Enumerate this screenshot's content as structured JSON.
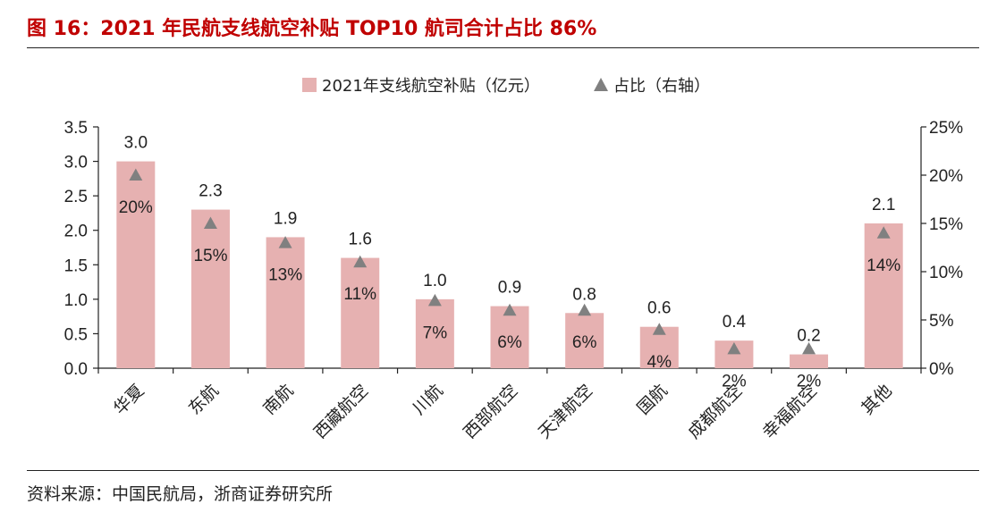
{
  "figure": {
    "title": "图 16：2021 年民航支线航空补贴 TOP10 航司合计占比 86%",
    "source": "资料来源：中国民航局，浙商证券研究所"
  },
  "colors": {
    "bar": "#e6b1b1",
    "marker": "#808080",
    "title": "#c00000",
    "axis": "#222222"
  },
  "chart_data": {
    "type": "bar",
    "categories": [
      "华夏",
      "东航",
      "南航",
      "西藏航空",
      "川航",
      "西部航空",
      "天津航空",
      "国航",
      "成都航空",
      "幸福航空",
      "其他"
    ],
    "series": [
      {
        "name": "2021年支线航空补贴（亿元）",
        "type": "bar",
        "axis": "left",
        "values": [
          3.0,
          2.3,
          1.9,
          1.6,
          1.0,
          0.9,
          0.8,
          0.6,
          0.4,
          0.2,
          2.1
        ],
        "labels": [
          "3.0",
          "2.3",
          "1.9",
          "1.6",
          "1.0",
          "0.9",
          "0.8",
          "0.6",
          "0.4",
          "0.2",
          "2.1"
        ]
      },
      {
        "name": "占比（右轴）",
        "type": "scatter",
        "marker": "triangle",
        "axis": "right",
        "values": [
          20,
          15,
          13,
          11,
          7,
          6,
          6,
          4,
          2,
          2,
          14
        ],
        "labels": [
          "20%",
          "15%",
          "13%",
          "11%",
          "7%",
          "6%",
          "6%",
          "4%",
          "2%",
          "2%",
          "14%"
        ]
      }
    ],
    "ylim": [
      0,
      3.5
    ],
    "yticks": [
      "0.0",
      "0.5",
      "1.0",
      "1.5",
      "2.0",
      "2.5",
      "3.0",
      "3.5"
    ],
    "y2lim": [
      0,
      25
    ],
    "y2ticks": [
      "0%",
      "5%",
      "10%",
      "15%",
      "20%",
      "25%"
    ],
    "legend_position": "top-center",
    "grid": false
  }
}
